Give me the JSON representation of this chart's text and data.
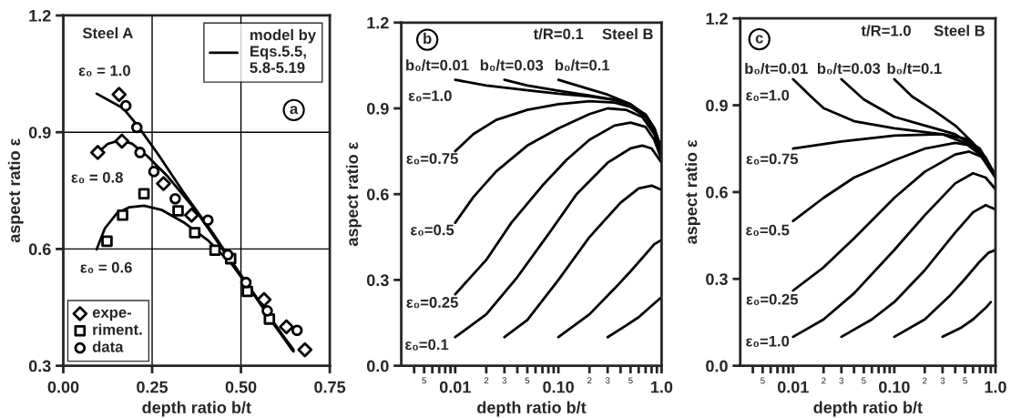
{
  "chart_data": [
    {
      "type": "line",
      "title": "a",
      "xlabel": "depth ratio b/t",
      "ylabel": "aspect ratio ε",
      "xlim": [
        0,
        0.75
      ],
      "ylim": [
        0.3,
        1.2
      ],
      "xticks": [
        {
          "value": 0,
          "label": "0.00"
        },
        0.25,
        {
          "value": 0.5,
          "label": "0.50"
        },
        0.75
      ],
      "yticks": [
        0.3,
        0.6,
        0.9,
        1.2
      ],
      "grid": true,
      "legend": "bottom left",
      "series": [
        {
          "type": "line",
          "name": "model by\nEqs.5.5,\n5.8-5.19",
          "color": "#000000",
          "x": [
            0.094,
            0.168,
            0.21,
            0.27,
            0.338,
            0.423,
            0.491,
            0.567,
            0.644
          ],
          "values": [
            0.999,
            0.962,
            0.916,
            0.839,
            0.746,
            0.638,
            0.545,
            0.445,
            0.341
          ]
        },
        {
          "type": "line",
          "color": "#000000",
          "x": [
            0.098,
            0.125,
            0.159,
            0.193,
            0.236,
            0.295,
            0.372,
            0.448,
            0.525,
            0.593,
            0.648
          ],
          "values": [
            0.848,
            0.87,
            0.879,
            0.871,
            0.839,
            0.785,
            0.7,
            0.6,
            0.499,
            0.406,
            0.337
          ]
        },
        {
          "type": "line",
          "color": "#000000",
          "x": [
            0.094,
            0.117,
            0.151,
            0.185,
            0.227,
            0.278,
            0.338,
            0.406,
            0.474,
            0.542,
            0.601,
            0.648
          ],
          "values": [
            0.599,
            0.653,
            0.692,
            0.707,
            0.711,
            0.7,
            0.669,
            0.623,
            0.561,
            0.476,
            0.399,
            0.341
          ]
        },
        {
          "type": "scatter",
          "name": "expe-",
          "marker": "diamond",
          "color": "#000000",
          "x": [
            0.157,
            0.097,
            0.165,
            0.282,
            0.361,
            0.565,
            0.628,
            0.68
          ],
          "values": [
            0.997,
            0.848,
            0.877,
            0.768,
            0.687,
            0.47,
            0.4,
            0.341
          ]
        },
        {
          "type": "scatter",
          "name": "riment.",
          "marker": "square",
          "color": "#000000",
          "x": [
            0.123,
            0.167,
            0.227,
            0.323,
            0.37,
            0.427,
            0.471,
            0.518,
            0.58
          ],
          "values": [
            0.62,
            0.687,
            0.742,
            0.698,
            0.642,
            0.597,
            0.575,
            0.491,
            0.42
          ]
        },
        {
          "type": "scatter",
          "name": "data",
          "marker": "circle",
          "color": "#000000",
          "x": [
            0.176,
            0.207,
            0.216,
            0.255,
            0.315,
            0.407,
            0.463,
            0.514,
            0.574,
            0.658
          ],
          "values": [
            0.968,
            0.912,
            0.848,
            0.799,
            0.729,
            0.674,
            0.585,
            0.514,
            0.441,
            0.391
          ]
        }
      ],
      "annotations": [
        "Steel A",
        "ε₀ = 1.0",
        "ε₀ = 0.8",
        "ε₀ = 0.6"
      ]
    },
    {
      "type": "line",
      "title": "b",
      "xlabel": "depth ratio b/t",
      "ylabel": "aspect ratio ε",
      "log": "x",
      "xlim": [
        0.003,
        1.0
      ],
      "ylim": [
        0,
        1.2
      ],
      "xticks": [
        {
          "value": 0.004,
          "label": null
        },
        {
          "value": 0.005,
          "label": null
        },
        {
          "value": 0.006,
          "label": null
        },
        {
          "value": 0.007,
          "label": null
        },
        {
          "value": 0.008,
          "label": null
        },
        {
          "value": 0.009,
          "label": null
        },
        0.01,
        {
          "value": 0.02,
          "label": null
        },
        {
          "value": 0.03,
          "label": null
        },
        {
          "value": 0.04,
          "label": null
        },
        {
          "value": 0.05,
          "label": null
        },
        {
          "value": 0.06,
          "label": null
        },
        {
          "value": 0.07,
          "label": null
        },
        {
          "value": 0.08,
          "label": null
        },
        {
          "value": 0.09,
          "label": null
        },
        {
          "value": 0.1,
          "label": "0.10"
        },
        {
          "value": 0.2,
          "label": null
        },
        {
          "value": 0.3,
          "label": null
        },
        {
          "value": 0.4,
          "label": null
        },
        {
          "value": 0.5,
          "label": null
        },
        {
          "value": 0.6,
          "label": null
        },
        {
          "value": 0.7,
          "label": null
        },
        {
          "value": 0.8,
          "label": null
        },
        {
          "value": 0.9,
          "label": null
        },
        {
          "value": 1,
          "label": "1.0"
        }
      ],
      "yticks": [
        {
          "value": 0,
          "label": "0.0"
        },
        0.3,
        0.6,
        0.9,
        1.2
      ],
      "series": [
        {
          "color": "#000000",
          "x": [
            0.01,
            0.02,
            0.05,
            0.1,
            0.2,
            0.35,
            0.5,
            0.7,
            0.85,
            1.0
          ],
          "values": [
            1.0,
            0.98,
            0.963,
            0.951,
            0.942,
            0.93,
            0.912,
            0.878,
            0.83,
            0.755
          ]
        },
        {
          "color": "#000000",
          "x": [
            0.03,
            0.05,
            0.1,
            0.2,
            0.35,
            0.5,
            0.7,
            0.85,
            1.0
          ],
          "values": [
            1.0,
            0.98,
            0.962,
            0.945,
            0.93,
            0.912,
            0.878,
            0.83,
            0.755
          ]
        },
        {
          "color": "#000000",
          "x": [
            0.1,
            0.18,
            0.3,
            0.5,
            0.7,
            0.85,
            1.0
          ],
          "values": [
            1.0,
            0.972,
            0.948,
            0.915,
            0.875,
            0.83,
            0.755
          ]
        },
        {
          "color": "#000000",
          "x": [
            0.01,
            0.015,
            0.025,
            0.05,
            0.1,
            0.2,
            0.35,
            0.5,
            0.7,
            0.85,
            1.0
          ],
          "values": [
            0.75,
            0.81,
            0.86,
            0.895,
            0.915,
            0.925,
            0.92,
            0.905,
            0.87,
            0.82,
            0.74
          ]
        },
        {
          "color": "#000000",
          "x": [
            0.01,
            0.015,
            0.025,
            0.05,
            0.1,
            0.2,
            0.3,
            0.45,
            0.65,
            0.85,
            1.0
          ],
          "values": [
            0.5,
            0.59,
            0.68,
            0.77,
            0.83,
            0.88,
            0.9,
            0.895,
            0.87,
            0.81,
            0.73
          ]
        },
        {
          "color": "#000000",
          "x": [
            0.01,
            0.02,
            0.035,
            0.07,
            0.12,
            0.2,
            0.35,
            0.5,
            0.7,
            0.85,
            1.0
          ],
          "values": [
            0.25,
            0.37,
            0.5,
            0.63,
            0.72,
            0.79,
            0.84,
            0.85,
            0.835,
            0.79,
            0.72
          ]
        },
        {
          "color": "#000000",
          "x": [
            0.01,
            0.02,
            0.04,
            0.08,
            0.15,
            0.3,
            0.5,
            0.65,
            0.8,
            1.0
          ],
          "values": [
            0.1,
            0.18,
            0.31,
            0.46,
            0.6,
            0.71,
            0.76,
            0.77,
            0.76,
            0.71
          ]
        },
        {
          "color": "#000000",
          "x": [
            0.03,
            0.05,
            0.1,
            0.2,
            0.4,
            0.6,
            0.8,
            1.0
          ],
          "values": [
            0.1,
            0.16,
            0.3,
            0.45,
            0.57,
            0.62,
            0.63,
            0.615
          ]
        },
        {
          "color": "#000000",
          "x": [
            0.1,
            0.2,
            0.35,
            0.5,
            0.7,
            0.85,
            1.0
          ],
          "values": [
            0.1,
            0.18,
            0.27,
            0.33,
            0.39,
            0.425,
            0.44
          ]
        },
        {
          "color": "#000000",
          "x": [
            0.3,
            0.45,
            0.6,
            0.8,
            1.0
          ],
          "values": [
            0.1,
            0.14,
            0.17,
            0.21,
            0.24
          ]
        }
      ],
      "annotations": [
        "t/R=0.1",
        "Steel B",
        "b₀/t=0.01",
        "b₀/t=0.03",
        "b₀/t=0.1",
        "ε₀=1.0",
        "ε₀=0.75",
        "ε₀=0.5",
        "ε₀=0.25",
        "ε₀=0.1",
        "5",
        "2",
        "3",
        "5",
        "2",
        "3",
        "5"
      ]
    },
    {
      "type": "line",
      "title": "c",
      "xlabel": "depth ratio b/t",
      "ylabel": "aspect ratio ε",
      "log": "x",
      "xlim": [
        0.003,
        1.0
      ],
      "ylim": [
        0,
        1.2
      ],
      "xticks": [
        {
          "value": 0.004,
          "label": null
        },
        {
          "value": 0.005,
          "label": null
        },
        {
          "value": 0.006,
          "label": null
        },
        {
          "value": 0.007,
          "label": null
        },
        {
          "value": 0.008,
          "label": null
        },
        {
          "value": 0.009,
          "label": null
        },
        0.01,
        {
          "value": 0.02,
          "label": null
        },
        {
          "value": 0.03,
          "label": null
        },
        {
          "value": 0.04,
          "label": null
        },
        {
          "value": 0.05,
          "label": null
        },
        {
          "value": 0.06,
          "label": null
        },
        {
          "value": 0.07,
          "label": null
        },
        {
          "value": 0.08,
          "label": null
        },
        {
          "value": 0.09,
          "label": null
        },
        {
          "value": 0.1,
          "label": "0.10"
        },
        {
          "value": 0.2,
          "label": null
        },
        {
          "value": 0.3,
          "label": null
        },
        {
          "value": 0.4,
          "label": null
        },
        {
          "value": 0.5,
          "label": null
        },
        {
          "value": 0.6,
          "label": null
        },
        {
          "value": 0.7,
          "label": null
        },
        {
          "value": 0.8,
          "label": null
        },
        {
          "value": 0.9,
          "label": null
        },
        {
          "value": 1,
          "label": "1.0"
        }
      ],
      "yticks": [
        {
          "value": 0,
          "label": "0.0"
        },
        0.3,
        0.6,
        0.9,
        1.2
      ],
      "series": [
        {
          "color": "#000000",
          "x": [
            0.01,
            0.015,
            0.02,
            0.04,
            0.1,
            0.3,
            0.5,
            0.7,
            1.0
          ],
          "values": [
            0.99,
            0.93,
            0.89,
            0.845,
            0.82,
            0.8,
            0.77,
            0.73,
            0.65
          ]
        },
        {
          "color": "#000000",
          "x": [
            0.03,
            0.05,
            0.1,
            0.2,
            0.4,
            0.6,
            0.8,
            1.0
          ],
          "values": [
            0.99,
            0.92,
            0.86,
            0.83,
            0.8,
            0.76,
            0.71,
            0.65
          ]
        },
        {
          "color": "#000000",
          "x": [
            0.1,
            0.15,
            0.25,
            0.4,
            0.6,
            0.8,
            1.0
          ],
          "values": [
            0.99,
            0.93,
            0.88,
            0.83,
            0.77,
            0.71,
            0.66
          ]
        },
        {
          "color": "#000000",
          "x": [
            0.01,
            0.03,
            0.1,
            0.3,
            0.5,
            0.7,
            1.0
          ],
          "values": [
            0.75,
            0.775,
            0.795,
            0.8,
            0.785,
            0.75,
            0.66
          ]
        },
        {
          "color": "#000000",
          "x": [
            0.01,
            0.02,
            0.04,
            0.1,
            0.2,
            0.4,
            0.6,
            0.8,
            1.0
          ],
          "values": [
            0.5,
            0.58,
            0.65,
            0.71,
            0.75,
            0.77,
            0.76,
            0.72,
            0.65
          ]
        },
        {
          "color": "#000000",
          "x": [
            0.01,
            0.02,
            0.04,
            0.1,
            0.2,
            0.4,
            0.55,
            0.75,
            1.0
          ],
          "values": [
            0.26,
            0.34,
            0.44,
            0.58,
            0.67,
            0.73,
            0.74,
            0.72,
            0.66
          ]
        },
        {
          "color": "#000000",
          "x": [
            0.01,
            0.02,
            0.04,
            0.1,
            0.2,
            0.4,
            0.6,
            0.8,
            1.0
          ],
          "values": [
            0.1,
            0.16,
            0.25,
            0.4,
            0.52,
            0.63,
            0.665,
            0.65,
            0.61
          ]
        },
        {
          "color": "#000000",
          "x": [
            0.03,
            0.06,
            0.1,
            0.2,
            0.4,
            0.6,
            0.8,
            1.0
          ],
          "values": [
            0.1,
            0.16,
            0.22,
            0.33,
            0.46,
            0.53,
            0.555,
            0.54
          ]
        },
        {
          "color": "#000000",
          "x": [
            0.1,
            0.2,
            0.35,
            0.5,
            0.7,
            0.85,
            1.0
          ],
          "values": [
            0.1,
            0.16,
            0.24,
            0.3,
            0.36,
            0.39,
            0.4
          ]
        },
        {
          "color": "#000000",
          "x": [
            0.3,
            0.45,
            0.6,
            0.8,
            0.9
          ],
          "values": [
            0.1,
            0.13,
            0.16,
            0.2,
            0.22
          ]
        }
      ],
      "annotations": [
        "t/R=1.0",
        "Steel B",
        "b₀/t=0.01",
        "b₀/t=0.03",
        "b₀/t=0.1",
        "ε₀=1.0",
        "ε₀=0.75",
        "ε₀=0.5",
        "ε₀=0.25",
        "ε₀=1.0",
        "5",
        "2",
        "3",
        "5",
        "2",
        "3",
        "5"
      ]
    }
  ]
}
